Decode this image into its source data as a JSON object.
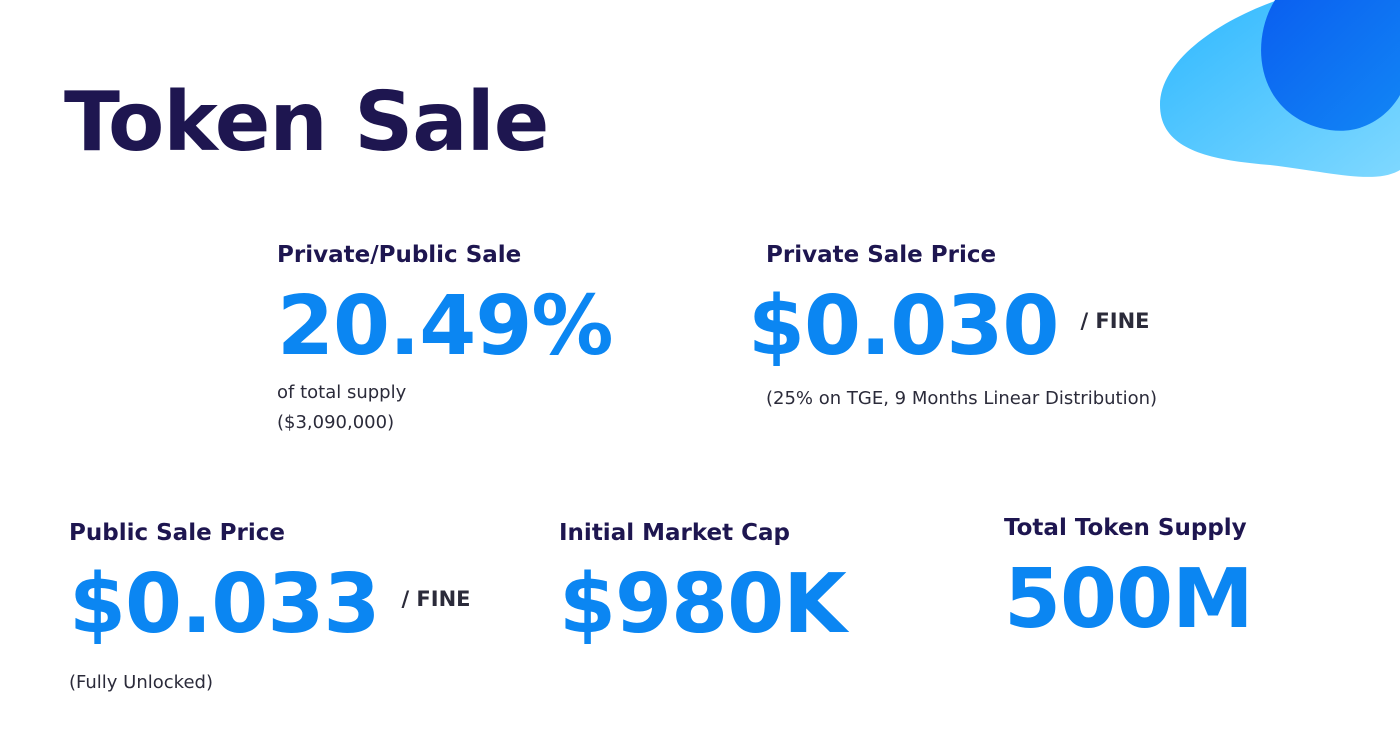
{
  "title": "Token Sale",
  "colors": {
    "title": "#1e1650",
    "accent": "#0b86f2",
    "text": "#2b2b3a",
    "blob_light": "#3ec6ff",
    "blob_dark": "#0a6df0"
  },
  "private_public_sale": {
    "label": "Private/Public Sale",
    "value": "20.49%",
    "note_line1": "of total supply",
    "note_line2": "($3,090,000)"
  },
  "private_sale_price": {
    "label": "Private Sale Price",
    "value": "$0.030",
    "unit": "/ FINE",
    "note": "(25% on TGE, 9 Months Linear Distribution)"
  },
  "public_sale_price": {
    "label": "Public Sale Price",
    "value": "$0.033",
    "unit": "/ FINE",
    "note": "(Fully Unlocked)"
  },
  "initial_market_cap": {
    "label": "Initial Market Cap",
    "value": "$980K"
  },
  "total_token_supply": {
    "label": "Total Token Supply",
    "value": "500M"
  }
}
